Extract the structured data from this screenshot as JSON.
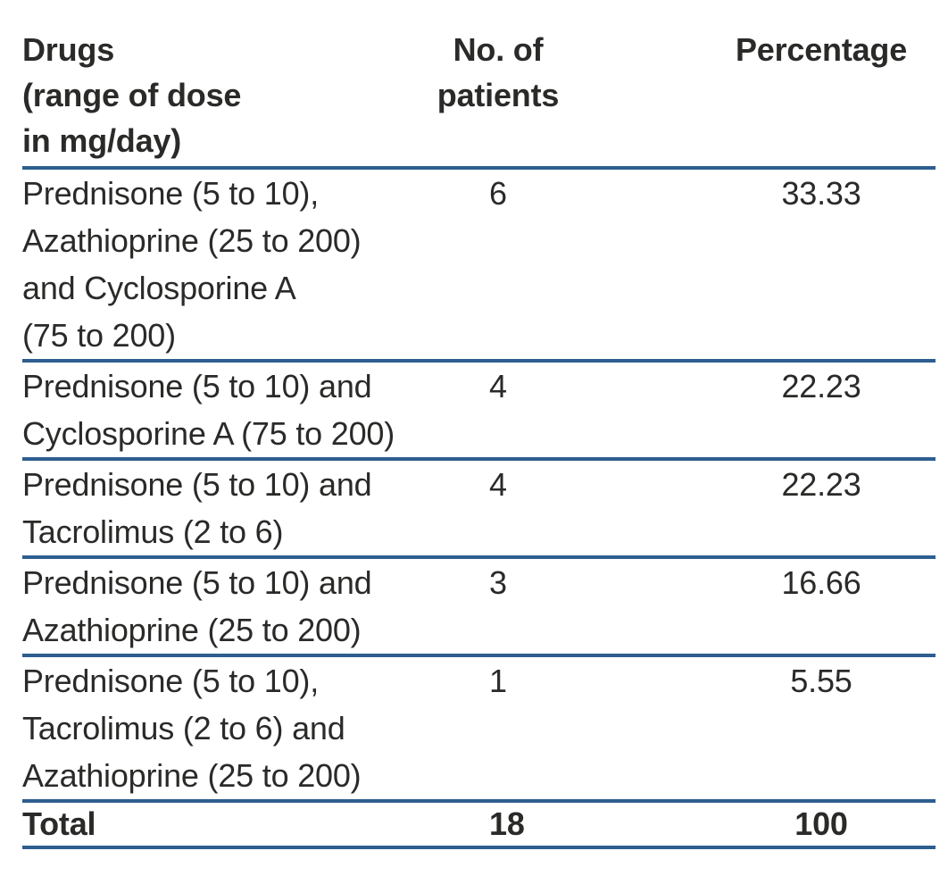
{
  "table": {
    "headers": {
      "drugs": "Drugs\n(range of dose\nin mg/day)",
      "patients": "No. of\npatients",
      "percentage": "Percentage"
    },
    "rows": [
      {
        "drug": "Prednisone (5 to 10),\nAzathioprine (25 to 200)\nand Cyclosporine A\n(75 to 200)",
        "patients": "6",
        "percentage": "33.33"
      },
      {
        "drug": "Prednisone (5 to 10) and\nCyclosporine A (75 to 200)",
        "patients": "4",
        "percentage": "22.23"
      },
      {
        "drug": "Prednisone (5 to 10) and\nTacrolimus (2 to 6)",
        "patients": "4",
        "percentage": "22.23"
      },
      {
        "drug": "Prednisone (5 to 10) and\nAzathioprine (25 to 200)",
        "patients": "3",
        "percentage": "16.66"
      },
      {
        "drug": "Prednisone (5 to 10),\nTacrolimus (2 to 6) and\nAzathioprine (25 to 200)",
        "patients": "1",
        "percentage": "5.55"
      }
    ],
    "total": {
      "label": "Total",
      "patients": "18",
      "percentage": "100"
    }
  },
  "colors": {
    "rule_blue": "#2e5e90",
    "text_dark": "#2a2a28",
    "background": "#ffffff"
  },
  "chart_data": {
    "type": "table",
    "columns": [
      "Drugs (range of dose in mg/day)",
      "No. of patients",
      "Percentage"
    ],
    "rows": [
      [
        "Prednisone (5 to 10), Azathioprine (25 to 200) and Cyclosporine A (75 to 200)",
        6,
        33.33
      ],
      [
        "Prednisone (5 to 10) and Cyclosporine A (75 to 200)",
        4,
        22.23
      ],
      [
        "Prednisone (5 to 10) and Tacrolimus (2 to 6)",
        4,
        22.23
      ],
      [
        "Prednisone (5 to 10) and Azathioprine (25 to 200)",
        3,
        16.66
      ],
      [
        "Prednisone (5 to 10), Tacrolimus (2 to 6) and Azathioprine (25 to 200)",
        1,
        5.55
      ]
    ],
    "total_row": [
      "Total",
      18,
      100
    ]
  }
}
